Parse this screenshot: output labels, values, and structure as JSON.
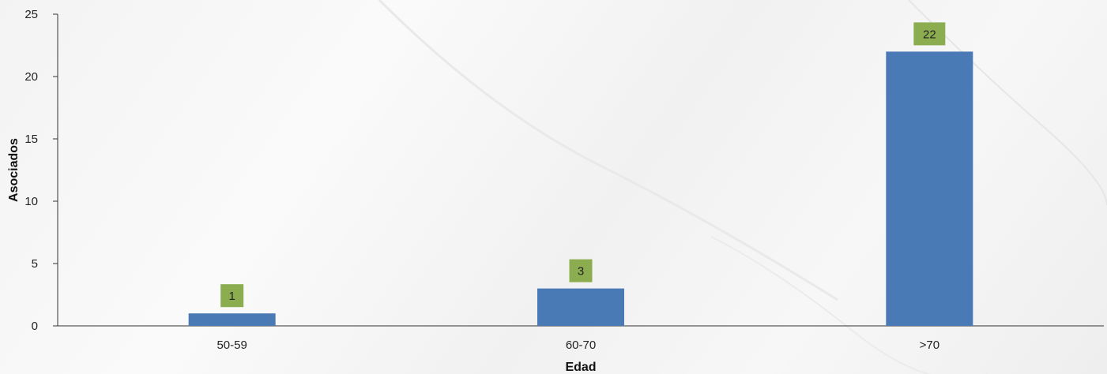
{
  "chart_data": {
    "type": "bar",
    "title": "",
    "xlabel": "Edad",
    "ylabel": "Asociados",
    "categories": [
      "50-59",
      "60-70",
      ">70"
    ],
    "values": [
      1,
      3,
      22
    ],
    "data_labels": [
      "1",
      "3",
      "22"
    ],
    "ylim": [
      0,
      25
    ],
    "yticks": [
      0,
      5,
      10,
      15,
      20,
      25
    ],
    "ytick_labels": [
      "0",
      "5",
      "10",
      "15",
      "20",
      "25"
    ],
    "grid": false,
    "legend": "none",
    "colors": {
      "bar": "#4a7ab5",
      "data_label_bg": "#8bad4f",
      "axis": "#333333"
    }
  }
}
